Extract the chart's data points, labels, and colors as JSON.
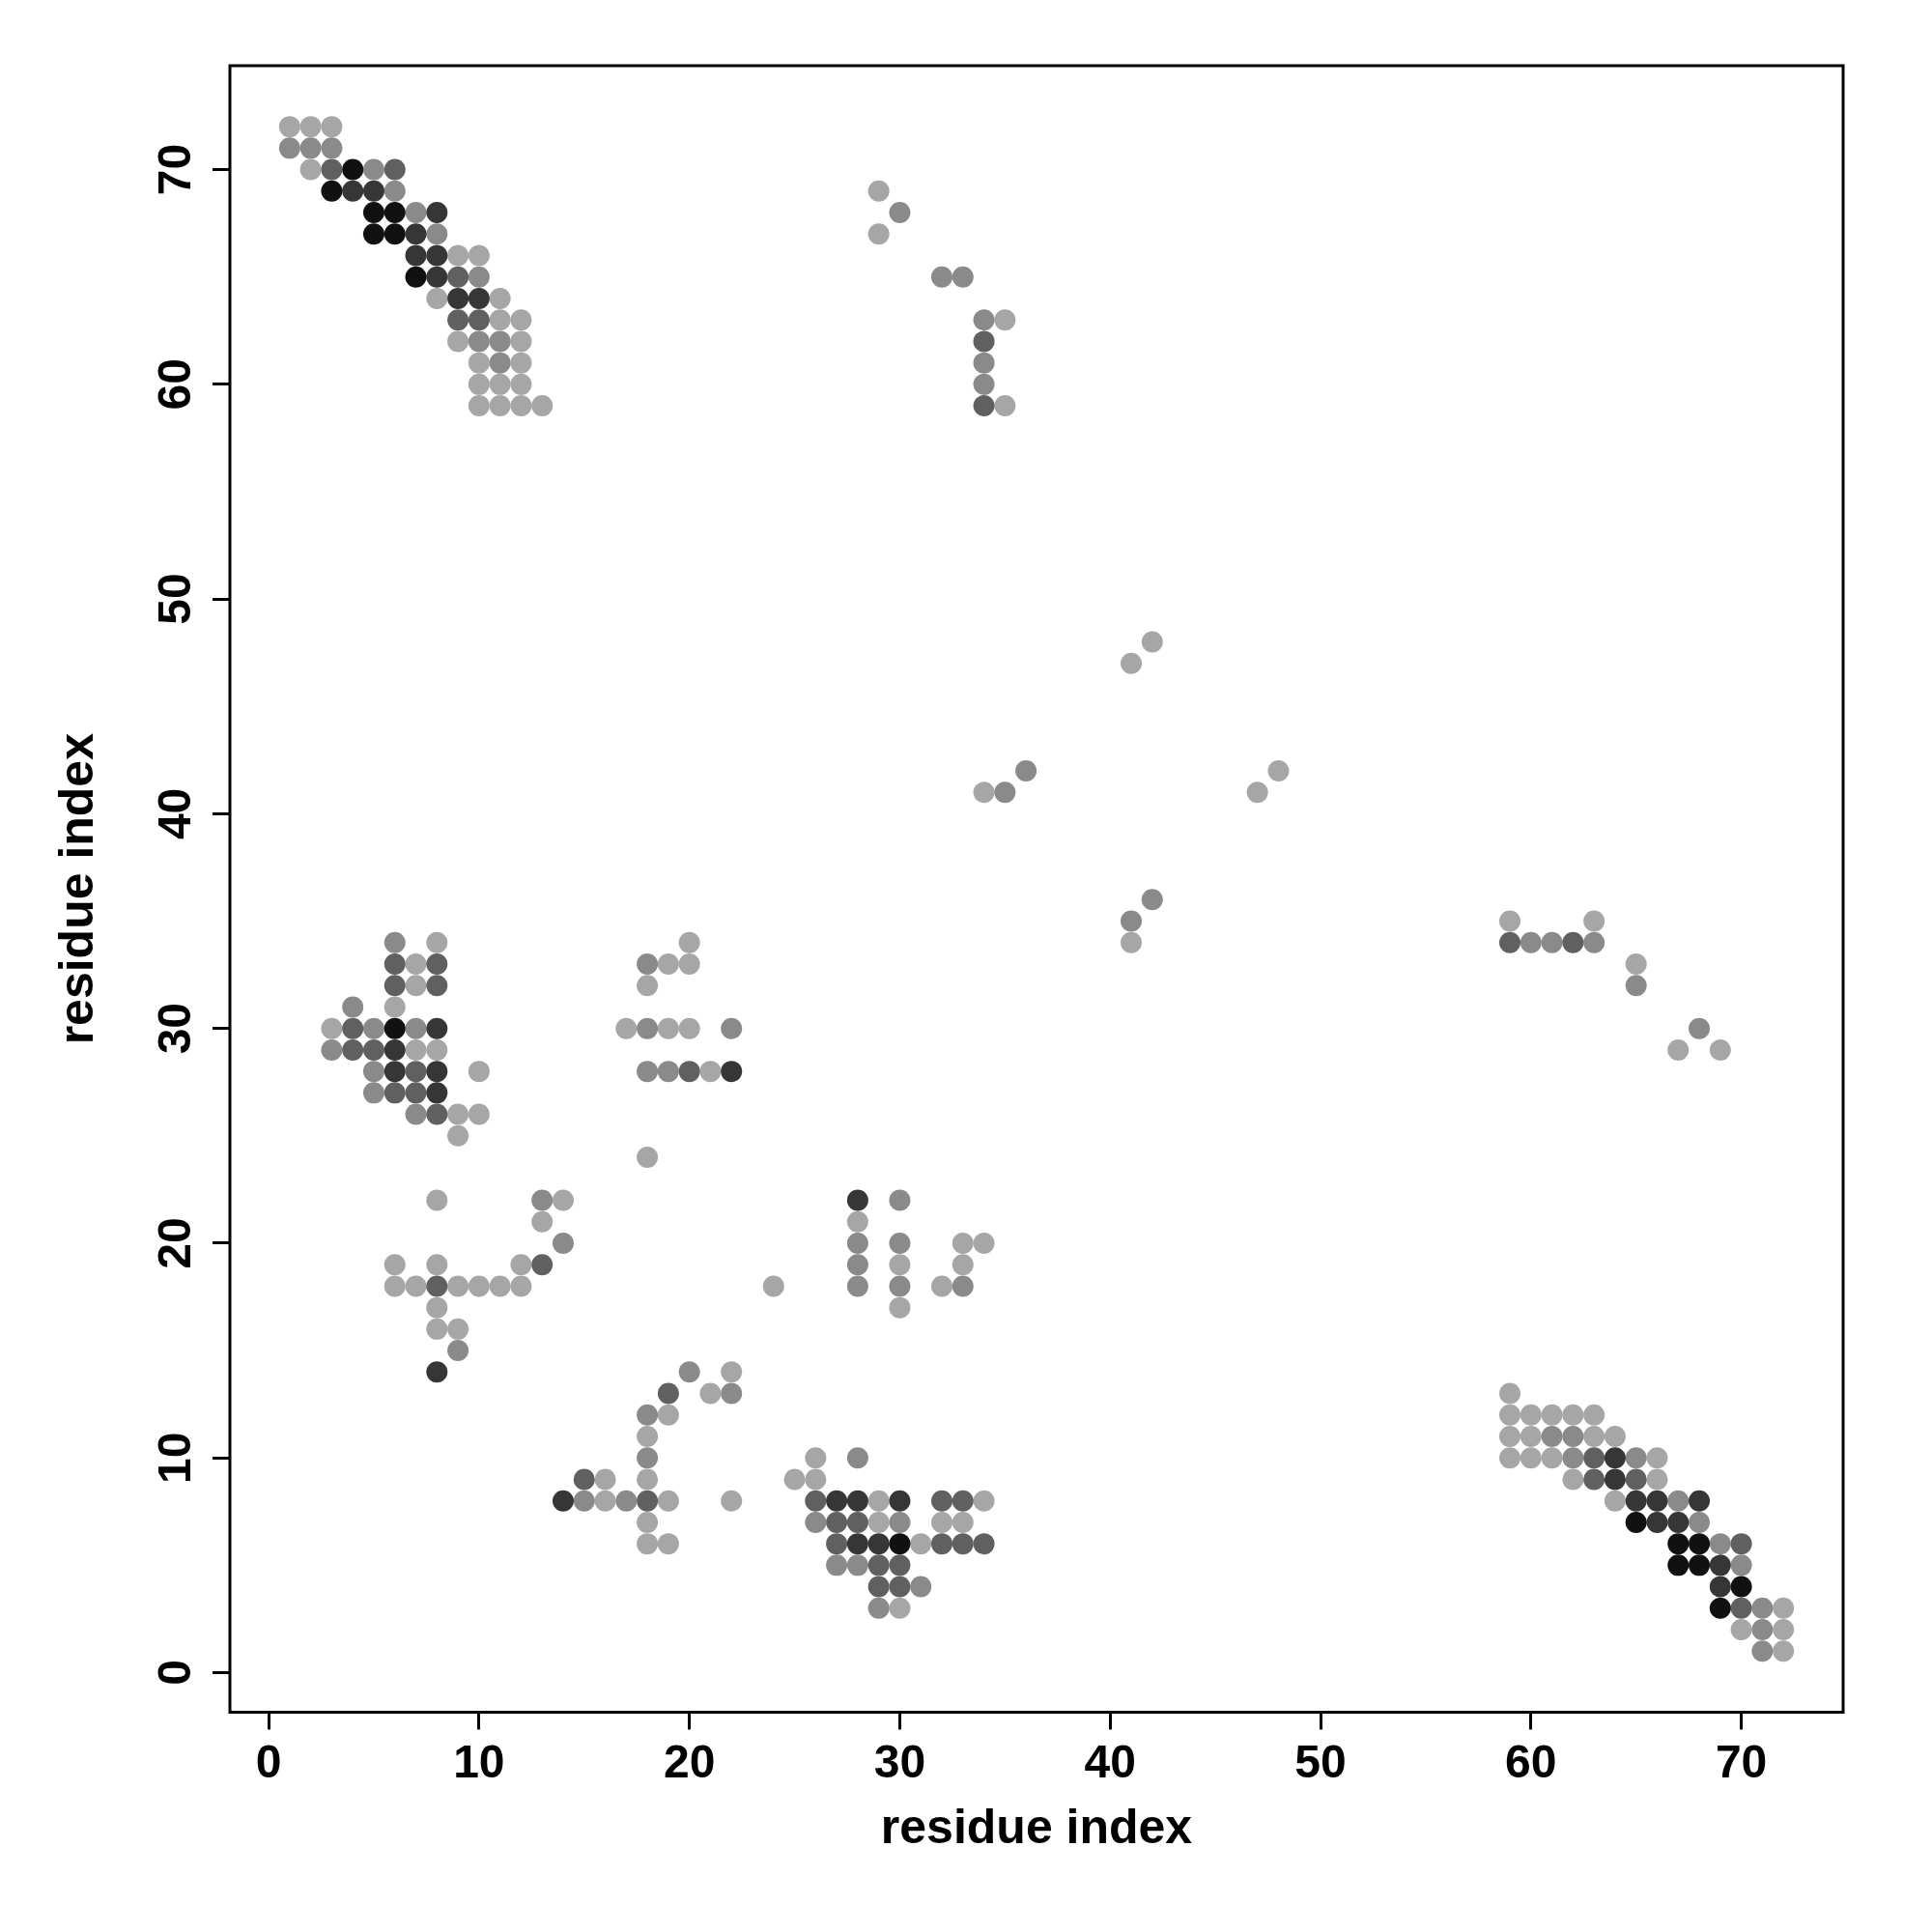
{
  "chart_data": {
    "type": "scatter",
    "xlabel": "residue index",
    "ylabel": "residue index",
    "xlim": [
      -1.84,
      74.84
    ],
    "ylim": [
      -1.84,
      74.84
    ],
    "xticks": [
      0,
      10,
      20,
      30,
      40,
      50,
      60,
      70
    ],
    "yticks": [
      0,
      10,
      20,
      30,
      40,
      50,
      60,
      70
    ],
    "grid": false,
    "legend": false,
    "marker": "circle",
    "series": [
      {
        "color": "#111111",
        "x": [
          4,
          3,
          5,
          6,
          5,
          6,
          7,
          6,
          30,
          65,
          67,
          68,
          67,
          68,
          70,
          69
        ],
        "values": [
          70,
          69,
          68,
          68,
          67,
          67,
          65,
          30,
          6,
          7,
          6,
          6,
          5,
          5,
          4,
          3
        ]
      },
      {
        "color": "#363636",
        "x": [
          4,
          5,
          8,
          7,
          7,
          8,
          8,
          9,
          10,
          8,
          6,
          6,
          8,
          8,
          22,
          8,
          14,
          27,
          28,
          30,
          28,
          29,
          28,
          64,
          64,
          65,
          66,
          68,
          66,
          67,
          69,
          69
        ],
        "values": [
          69,
          69,
          68,
          67,
          66,
          66,
          65,
          64,
          64,
          30,
          29,
          28,
          28,
          27,
          28,
          14,
          8,
          8,
          8,
          8,
          6,
          6,
          22,
          10,
          9,
          8,
          8,
          8,
          7,
          7,
          5,
          4
        ]
      },
      {
        "color": "#606060",
        "x": [
          3,
          6,
          9,
          9,
          10,
          34,
          34,
          6,
          8,
          6,
          8,
          4,
          4,
          5,
          7,
          6,
          7,
          8,
          20,
          13,
          8,
          19,
          15,
          18,
          26,
          32,
          33,
          27,
          28,
          27,
          32,
          33,
          34,
          29,
          30,
          29,
          30,
          59,
          62,
          63,
          63,
          65,
          70,
          70
        ],
        "values": [
          70,
          70,
          65,
          63,
          63,
          62,
          59,
          33,
          33,
          32,
          32,
          30,
          29,
          29,
          28,
          27,
          27,
          26,
          28,
          19,
          18,
          13,
          9,
          8,
          8,
          8,
          8,
          7,
          7,
          6,
          6,
          6,
          6,
          5,
          5,
          4,
          4,
          34,
          34,
          10,
          9,
          9,
          6,
          3
        ]
      },
      {
        "color": "#8a8a8a",
        "x": [
          1,
          2,
          3,
          5,
          6,
          7,
          8,
          10,
          10,
          11,
          11,
          30,
          32,
          33,
          34,
          34,
          34,
          36,
          35,
          42,
          41,
          60,
          61,
          63,
          65,
          68,
          6,
          4,
          5,
          7,
          3,
          5,
          5,
          7,
          18,
          18,
          22,
          18,
          19,
          13,
          14,
          9,
          20,
          22,
          18,
          18,
          15,
          17,
          28,
          26,
          30,
          31,
          27,
          28,
          29,
          28,
          28,
          28,
          30,
          30,
          30,
          33,
          61,
          62,
          62,
          65,
          67,
          68,
          69,
          70,
          71,
          71,
          71
        ],
        "values": [
          71,
          71,
          71,
          70,
          69,
          68,
          67,
          65,
          62,
          62,
          61,
          68,
          65,
          65,
          63,
          61,
          60,
          42,
          41,
          36,
          35,
          34,
          34,
          34,
          32,
          30,
          34,
          31,
          30,
          30,
          29,
          28,
          27,
          26,
          33,
          30,
          30,
          28,
          28,
          22,
          20,
          15,
          14,
          13,
          12,
          10,
          8,
          8,
          10,
          7,
          7,
          4,
          5,
          5,
          3,
          20,
          19,
          18,
          22,
          20,
          18,
          18,
          11,
          11,
          10,
          10,
          8,
          7,
          6,
          5,
          3,
          2,
          1
        ]
      },
      {
        "color": "#a6a6a6",
        "x": [
          1,
          2,
          3,
          2,
          9,
          10,
          8,
          11,
          11,
          12,
          9,
          12,
          10,
          12,
          10,
          11,
          12,
          10,
          11,
          12,
          13,
          29,
          29,
          35,
          35,
          42,
          41,
          34,
          48,
          47,
          41,
          59,
          63,
          65,
          67,
          69,
          8,
          7,
          7,
          6,
          3,
          7,
          8,
          10,
          9,
          10,
          9,
          20,
          19,
          20,
          18,
          17,
          19,
          20,
          21,
          18,
          8,
          14,
          13,
          6,
          8,
          12,
          6,
          7,
          9,
          10,
          11,
          12,
          24,
          8,
          8,
          9,
          22,
          21,
          19,
          18,
          16,
          18,
          16,
          19,
          22,
          18,
          18,
          19,
          26,
          25,
          26,
          29,
          34,
          29,
          32,
          33,
          31,
          30,
          28,
          30,
          30,
          32,
          33,
          34,
          33,
          59,
          59,
          60,
          61,
          62,
          63,
          59,
          60,
          63,
          64,
          59,
          60,
          61,
          66,
          62,
          66,
          64,
          72,
          70,
          72,
          72
        ],
        "values": [
          72,
          72,
          72,
          70,
          66,
          66,
          64,
          64,
          63,
          63,
          62,
          62,
          61,
          61,
          60,
          60,
          60,
          59,
          59,
          59,
          59,
          69,
          67,
          63,
          59,
          48,
          47,
          41,
          42,
          41,
          34,
          35,
          35,
          33,
          29,
          29,
          34,
          33,
          32,
          31,
          30,
          29,
          29,
          28,
          26,
          26,
          25,
          34,
          33,
          33,
          32,
          30,
          30,
          30,
          28,
          24,
          22,
          22,
          21,
          19,
          19,
          19,
          18,
          18,
          18,
          18,
          18,
          18,
          18,
          17,
          16,
          16,
          14,
          13,
          12,
          11,
          9,
          9,
          8,
          8,
          8,
          7,
          6,
          6,
          10,
          9,
          9,
          8,
          8,
          7,
          7,
          7,
          6,
          3,
          21,
          19,
          17,
          18,
          20,
          20,
          19,
          13,
          12,
          12,
          12,
          12,
          12,
          11,
          11,
          11,
          11,
          10,
          10,
          10,
          10,
          9,
          9,
          8,
          3,
          2,
          2,
          1
        ]
      }
    ]
  }
}
